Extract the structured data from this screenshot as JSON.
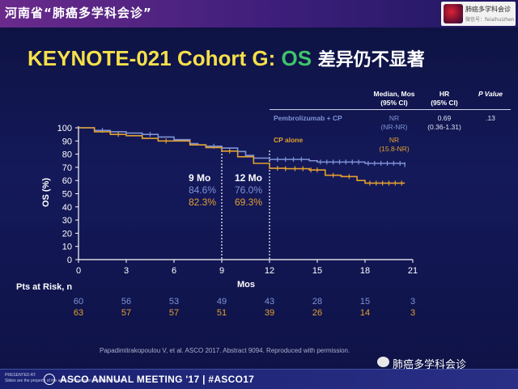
{
  "header": {
    "banner_text": "河南省“肺癌多学科会诊”",
    "logo_line1": "肺癌多学科会诊",
    "logo_line2": "微信号：feiaihuizhen"
  },
  "slide": {
    "title_part1": "KEYNOTE-021 Cohort G: ",
    "title_os": "OS",
    "title_cn": " 差异仍不显著",
    "citation": "Papadimitrakopoulou V, et al. ASCO 2017. Abstract 9094. Reproduced with permission.",
    "wechat_label": "肺癌多学科会诊",
    "footer_small1": "PRESENTED AT:",
    "footer_small2": "Slides are the property of the author. Permission required for reuse.",
    "footer_main": "ASCO ANNUAL MEETING '17  |  #ASCO17"
  },
  "table": {
    "col_median": "Median, Mos",
    "col_median_sub": "(95% CI)",
    "col_hr": "HR",
    "col_hr_sub": "(95% CI)",
    "col_p": "P Value",
    "rows": [
      {
        "label": "Pembrolizumab + CP",
        "median": "NR",
        "median_ci": "(NR-NR)",
        "hr": "0.69",
        "hr_ci": "(0.36-1.31)",
        "p": ".13"
      },
      {
        "label": "CP alone",
        "median": "NR",
        "median_ci": "(15.8-NR)"
      }
    ]
  },
  "annotations": [
    {
      "time": "9 Mo",
      "pembro": "84.6%",
      "cp": "82.3%"
    },
    {
      "time": "12 Mo",
      "pembro": "76.0%",
      "cp": "69.3%"
    }
  ],
  "risk": {
    "title": "Pts at Risk, n",
    "times": [
      0,
      3,
      6,
      9,
      12,
      15,
      18,
      21
    ],
    "pembro": [
      "60",
      "56",
      "53",
      "49",
      "43",
      "28",
      "15",
      "3"
    ],
    "cp": [
      "63",
      "57",
      "57",
      "51",
      "39",
      "26",
      "14",
      "3"
    ]
  },
  "colors": {
    "pembro": "#7e93d6",
    "cp": "#e3a030",
    "title": "#f5e04a",
    "os": "#3fc46a"
  },
  "chart_data": {
    "type": "line",
    "xlabel": "Mos",
    "ylabel": "OS (%)",
    "xlim": [
      0,
      21
    ],
    "ylim": [
      0,
      100
    ],
    "xticks": [
      0,
      3,
      6,
      9,
      12,
      15,
      18,
      21
    ],
    "yticks": [
      0,
      10,
      20,
      30,
      40,
      50,
      60,
      70,
      80,
      90,
      100
    ],
    "reference_lines_x": [
      9,
      12
    ],
    "series": [
      {
        "name": "Pembrolizumab + CP",
        "step_points": [
          [
            0,
            100
          ],
          [
            0.5,
            100
          ],
          [
            1,
            98
          ],
          [
            2,
            97
          ],
          [
            3,
            96
          ],
          [
            4,
            95
          ],
          [
            5,
            93
          ],
          [
            6,
            91
          ],
          [
            7,
            88
          ],
          [
            7.5,
            87
          ],
          [
            8,
            86
          ],
          [
            9,
            84.6
          ],
          [
            10,
            82
          ],
          [
            10.5,
            79
          ],
          [
            11,
            77
          ],
          [
            12,
            76
          ],
          [
            14,
            76
          ],
          [
            14.5,
            75
          ],
          [
            15,
            74
          ],
          [
            18,
            73
          ],
          [
            20.5,
            72
          ]
        ],
        "censor_x": [
          1.5,
          4.5,
          8.5,
          12.5,
          13,
          13.5,
          14,
          15.2,
          15.6,
          16,
          16.4,
          16.8,
          17.2,
          17.6,
          18.2,
          18.6,
          19,
          19.4,
          19.8,
          20.2,
          20.5
        ]
      },
      {
        "name": "CP alone",
        "step_points": [
          [
            0,
            100
          ],
          [
            1,
            97
          ],
          [
            2,
            95
          ],
          [
            3,
            94
          ],
          [
            4,
            92
          ],
          [
            5,
            90
          ],
          [
            6,
            90
          ],
          [
            7,
            87
          ],
          [
            8,
            85
          ],
          [
            9,
            82.3
          ],
          [
            10,
            78
          ],
          [
            11,
            73
          ],
          [
            12,
            69.3
          ],
          [
            13,
            69
          ],
          [
            14.5,
            68
          ],
          [
            15.5,
            64
          ],
          [
            16.5,
            63
          ],
          [
            17.5,
            60
          ],
          [
            18,
            58
          ],
          [
            20.5,
            58
          ]
        ],
        "censor_x": [
          2.5,
          5.5,
          9.5,
          12.5,
          13,
          13.6,
          14.1,
          14.6,
          15,
          16,
          17,
          18.3,
          18.7,
          19.1,
          19.5,
          19.9,
          20.3
        ]
      }
    ]
  }
}
